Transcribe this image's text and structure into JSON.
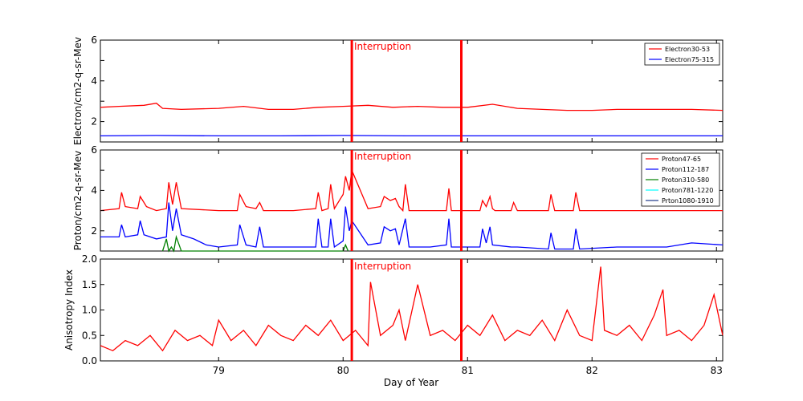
{
  "chart_data": [
    {
      "type": "line",
      "panel": "electron",
      "ylabel": "Electron/cm2-q-sr-Mev",
      "ylim": [
        1,
        6
      ],
      "yticks": [
        "2",
        "4",
        "6"
      ],
      "xlim": [
        78.05,
        83.05
      ],
      "legend_position": "top-right",
      "annotation": "Interruption",
      "interruptions": [
        80.07,
        80.95
      ],
      "series": [
        {
          "name": "Electron30-53",
          "color": "#ff0000",
          "x": [
            78.05,
            78.2,
            78.4,
            78.5,
            78.55,
            78.7,
            79.0,
            79.2,
            79.4,
            79.6,
            79.8,
            80.0,
            80.2,
            80.4,
            80.6,
            80.8,
            81.0,
            81.2,
            81.4,
            81.6,
            81.8,
            82.0,
            82.2,
            82.4,
            82.6,
            82.8,
            83.05
          ],
          "y": [
            2.7,
            2.75,
            2.8,
            2.9,
            2.65,
            2.6,
            2.65,
            2.75,
            2.6,
            2.6,
            2.7,
            2.75,
            2.8,
            2.7,
            2.75,
            2.7,
            2.7,
            2.85,
            2.65,
            2.6,
            2.55,
            2.55,
            2.6,
            2.6,
            2.6,
            2.6,
            2.55
          ]
        },
        {
          "name": "Electron75-315",
          "color": "#0000ff",
          "x": [
            78.05,
            78.5,
            79.0,
            79.5,
            80.0,
            80.5,
            81.0,
            81.5,
            82.0,
            82.5,
            83.05
          ],
          "y": [
            1.3,
            1.32,
            1.3,
            1.3,
            1.32,
            1.3,
            1.3,
            1.3,
            1.3,
            1.3,
            1.3
          ]
        }
      ]
    },
    {
      "type": "line",
      "panel": "proton",
      "ylabel": "Proton/cm2-q-sr-Mev",
      "ylim": [
        1,
        6
      ],
      "yticks": [
        "2",
        "4",
        "6"
      ],
      "xlim": [
        78.05,
        83.05
      ],
      "legend_position": "top-right",
      "annotation": "Interruption",
      "interruptions": [
        80.07,
        80.95
      ],
      "series": [
        {
          "name": "Proton47-65",
          "color": "#ff0000",
          "x": [
            78.05,
            78.2,
            78.22,
            78.25,
            78.35,
            78.37,
            78.4,
            78.42,
            78.5,
            78.58,
            78.6,
            78.63,
            78.66,
            78.7,
            79.0,
            79.15,
            79.17,
            79.22,
            79.3,
            79.33,
            79.36,
            79.6,
            79.78,
            79.8,
            79.83,
            79.88,
            79.9,
            79.93,
            80.0,
            80.02,
            80.05,
            80.07,
            80.2,
            80.3,
            80.33,
            80.38,
            80.42,
            80.45,
            80.48,
            80.5,
            80.53,
            80.7,
            80.83,
            80.85,
            80.87,
            81.1,
            81.12,
            81.15,
            81.18,
            81.2,
            81.22,
            81.35,
            81.37,
            81.4,
            81.65,
            81.67,
            81.7,
            81.85,
            81.87,
            81.9,
            82.2,
            82.6,
            83.05
          ],
          "y": [
            3.0,
            3.1,
            3.9,
            3.2,
            3.1,
            3.7,
            3.4,
            3.2,
            3.0,
            3.1,
            4.4,
            3.3,
            4.4,
            3.1,
            3.0,
            3.0,
            3.8,
            3.2,
            3.1,
            3.4,
            3.0,
            3.0,
            3.1,
            3.9,
            3.0,
            3.1,
            4.3,
            3.1,
            3.8,
            4.7,
            4.0,
            5.0,
            3.1,
            3.2,
            3.7,
            3.5,
            3.6,
            3.2,
            3.0,
            4.3,
            3.0,
            3.0,
            3.0,
            4.1,
            3.0,
            3.0,
            3.5,
            3.2,
            3.7,
            3.1,
            3.0,
            3.0,
            3.4,
            3.0,
            3.0,
            3.8,
            3.0,
            3.0,
            3.9,
            3.0,
            3.0,
            3.0,
            3.0
          ]
        },
        {
          "name": "Proton112-187",
          "color": "#0000ff",
          "x": [
            78.05,
            78.2,
            78.22,
            78.25,
            78.35,
            78.37,
            78.4,
            78.5,
            78.58,
            78.6,
            78.63,
            78.66,
            78.7,
            78.8,
            78.9,
            79.0,
            79.15,
            79.17,
            79.22,
            79.3,
            79.33,
            79.36,
            79.5,
            79.78,
            79.8,
            79.83,
            79.88,
            79.9,
            79.93,
            80.0,
            80.02,
            80.05,
            80.07,
            80.2,
            80.3,
            80.33,
            80.38,
            80.42,
            80.45,
            80.5,
            80.53,
            80.7,
            80.83,
            80.85,
            80.87,
            81.1,
            81.12,
            81.15,
            81.18,
            81.2,
            81.35,
            81.4,
            81.65,
            81.67,
            81.7,
            81.85,
            81.87,
            81.9,
            82.2,
            82.6,
            82.8,
            83.05
          ],
          "y": [
            1.7,
            1.7,
            2.3,
            1.7,
            1.8,
            2.5,
            1.8,
            1.6,
            1.7,
            3.4,
            2.0,
            3.1,
            1.8,
            1.6,
            1.3,
            1.2,
            1.3,
            2.3,
            1.3,
            1.2,
            2.2,
            1.2,
            1.2,
            1.2,
            2.6,
            1.2,
            1.2,
            2.6,
            1.2,
            1.5,
            3.2,
            2.0,
            2.5,
            1.3,
            1.4,
            2.2,
            2.0,
            2.1,
            1.3,
            2.6,
            1.2,
            1.2,
            1.3,
            2.6,
            1.2,
            1.2,
            2.1,
            1.4,
            2.2,
            1.3,
            1.2,
            1.2,
            1.1,
            1.9,
            1.1,
            1.1,
            2.1,
            1.1,
            1.2,
            1.2,
            1.4,
            1.3
          ]
        },
        {
          "name": "Proton310-580",
          "color": "#008000",
          "x": [
            78.55,
            78.58,
            78.6,
            78.62,
            78.64,
            78.66,
            78.7,
            80.0,
            80.02,
            80.04
          ],
          "y": [
            1.0,
            1.6,
            1.0,
            1.2,
            1.0,
            1.7,
            1.0,
            1.0,
            1.3,
            1.0
          ]
        },
        {
          "name": "Proton781-1220",
          "color": "#00ffff",
          "x": [],
          "y": []
        },
        {
          "name": "Prton1080-1910",
          "color": "#1f3a8a",
          "x": [],
          "y": []
        }
      ]
    },
    {
      "type": "line",
      "panel": "anisotropy",
      "ylabel": "Anisotropy Index",
      "xlabel": "Day of Year",
      "ylim": [
        0.0,
        2.0
      ],
      "yticks": [
        "0.0",
        "0.5",
        "1.0",
        "1.5",
        "2.0"
      ],
      "xlim": [
        78.05,
        83.05
      ],
      "xticks": [
        "79",
        "80",
        "81",
        "82",
        "83"
      ],
      "annotation": "Interruption",
      "interruptions": [
        80.07,
        80.95
      ],
      "series": [
        {
          "name": "Anisotropy",
          "color": "#ff0000",
          "x": [
            78.05,
            78.15,
            78.25,
            78.35,
            78.45,
            78.55,
            78.65,
            78.75,
            78.85,
            78.95,
            79.0,
            79.1,
            79.2,
            79.3,
            79.4,
            79.5,
            79.6,
            79.7,
            79.8,
            79.9,
            80.0,
            80.1,
            80.2,
            80.22,
            80.3,
            80.4,
            80.45,
            80.5,
            80.6,
            80.7,
            80.8,
            80.9,
            81.0,
            81.1,
            81.2,
            81.3,
            81.4,
            81.5,
            81.6,
            81.7,
            81.8,
            81.9,
            82.0,
            82.07,
            82.1,
            82.2,
            82.3,
            82.4,
            82.5,
            82.57,
            82.6,
            82.7,
            82.8,
            82.9,
            82.98,
            83.05
          ],
          "y": [
            0.3,
            0.2,
            0.4,
            0.3,
            0.5,
            0.2,
            0.6,
            0.4,
            0.5,
            0.3,
            0.8,
            0.4,
            0.6,
            0.3,
            0.7,
            0.5,
            0.4,
            0.7,
            0.5,
            0.8,
            0.4,
            0.6,
            0.3,
            1.55,
            0.5,
            0.7,
            1.0,
            0.4,
            1.5,
            0.5,
            0.6,
            0.4,
            0.7,
            0.5,
            0.9,
            0.4,
            0.6,
            0.5,
            0.8,
            0.4,
            1.0,
            0.5,
            0.4,
            1.85,
            0.6,
            0.5,
            0.7,
            0.4,
            0.9,
            1.4,
            0.5,
            0.6,
            0.4,
            0.7,
            1.3,
            0.5
          ]
        }
      ]
    }
  ]
}
